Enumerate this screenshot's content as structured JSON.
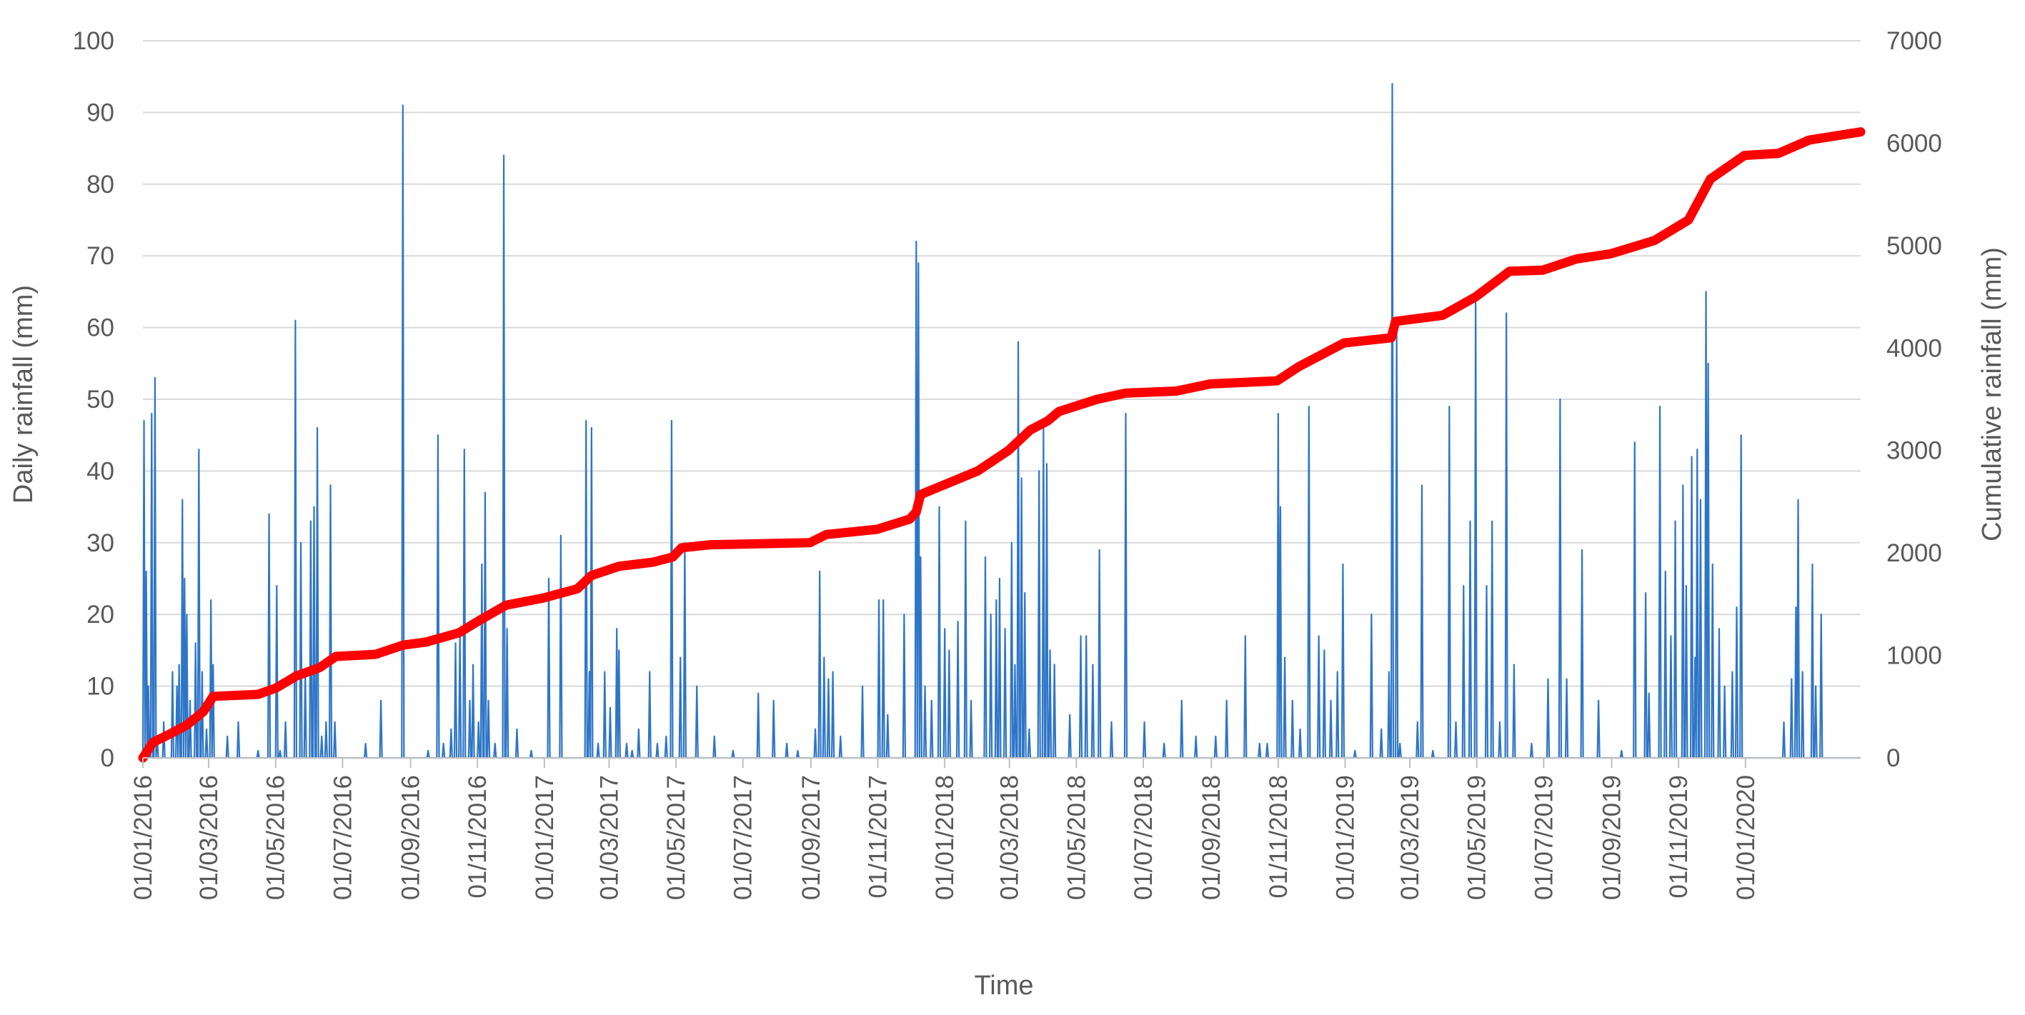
{
  "chart_data": {
    "type": "line",
    "xlabel": "Time",
    "ylabel_left": "Daily rainfall (mm)",
    "ylabel_right": "Cumulative rainfall (mm)",
    "x_range": [
      "2016-01-01",
      "2020-04-15"
    ],
    "ylim_left": [
      0,
      100
    ],
    "ylim_right": [
      0,
      7000
    ],
    "y_ticks_left": [
      "0",
      "10",
      "20",
      "30",
      "40",
      "50",
      "60",
      "70",
      "80",
      "90",
      "100"
    ],
    "y_ticks_right": [
      "0",
      "1000",
      "2000",
      "3000",
      "4000",
      "5000",
      "6000",
      "7000"
    ],
    "x_ticks": [
      "01/01/2016",
      "01/03/2016",
      "01/05/2016",
      "01/07/2016",
      "01/09/2016",
      "01/11/2016",
      "01/01/2017",
      "01/03/2017",
      "01/05/2017",
      "01/07/2017",
      "01/09/2017",
      "01/11/2017",
      "01/01/2018",
      "01/03/2018",
      "01/05/2018",
      "01/07/2018",
      "01/09/2018",
      "01/11/2018",
      "01/01/2019",
      "01/03/2019",
      "01/05/2019",
      "01/07/2019",
      "01/09/2019",
      "01/11/2019",
      "01/01/2020"
    ],
    "grid": "horizontal",
    "legend": "none",
    "series": [
      {
        "axis": "left",
        "color": "#2e75c7",
        "points": [
          [
            "2016-01-02",
            47
          ],
          [
            "2016-01-04",
            26
          ],
          [
            "2016-01-06",
            10
          ],
          [
            "2016-01-09",
            48
          ],
          [
            "2016-01-12",
            53
          ],
          [
            "2016-01-14",
            3
          ],
          [
            "2016-01-20",
            5
          ],
          [
            "2016-01-28",
            12
          ],
          [
            "2016-02-01",
            10
          ],
          [
            "2016-02-03",
            13
          ],
          [
            "2016-02-06",
            36
          ],
          [
            "2016-02-08",
            25
          ],
          [
            "2016-02-10",
            20
          ],
          [
            "2016-02-13",
            8
          ],
          [
            "2016-02-18",
            16
          ],
          [
            "2016-02-21",
            43
          ],
          [
            "2016-02-24",
            12
          ],
          [
            "2016-02-28",
            4
          ],
          [
            "2016-03-03",
            22
          ],
          [
            "2016-03-05",
            13
          ],
          [
            "2016-03-18",
            3
          ],
          [
            "2016-03-28",
            5
          ],
          [
            "2016-04-15",
            1
          ],
          [
            "2016-04-25",
            34
          ],
          [
            "2016-05-02",
            24
          ],
          [
            "2016-05-05",
            1
          ],
          [
            "2016-05-10",
            5
          ],
          [
            "2016-05-19",
            61
          ],
          [
            "2016-05-24",
            30
          ],
          [
            "2016-05-28",
            12
          ],
          [
            "2016-06-02",
            33
          ],
          [
            "2016-06-05",
            35
          ],
          [
            "2016-06-08",
            46
          ],
          [
            "2016-06-12",
            3
          ],
          [
            "2016-06-16",
            5
          ],
          [
            "2016-06-20",
            38
          ],
          [
            "2016-06-24",
            5
          ],
          [
            "2016-07-22",
            2
          ],
          [
            "2016-08-05",
            8
          ],
          [
            "2016-08-25",
            91
          ],
          [
            "2016-09-17",
            1
          ],
          [
            "2016-09-26",
            45
          ],
          [
            "2016-10-01",
            2
          ],
          [
            "2016-10-08",
            4
          ],
          [
            "2016-10-12",
            16
          ],
          [
            "2016-10-16",
            17
          ],
          [
            "2016-10-20",
            43
          ],
          [
            "2016-10-25",
            8
          ],
          [
            "2016-10-28",
            13
          ],
          [
            "2016-11-02",
            5
          ],
          [
            "2016-11-05",
            27
          ],
          [
            "2016-11-08",
            37
          ],
          [
            "2016-11-11",
            8
          ],
          [
            "2016-11-17",
            2
          ],
          [
            "2016-11-25",
            84
          ],
          [
            "2016-11-28",
            18
          ],
          [
            "2016-12-07",
            4
          ],
          [
            "2016-12-20",
            1
          ],
          [
            "2017-01-05",
            25
          ],
          [
            "2017-01-16",
            31
          ],
          [
            "2017-02-08",
            47
          ],
          [
            "2017-02-11",
            12
          ],
          [
            "2017-02-13",
            46
          ],
          [
            "2017-02-19",
            2
          ],
          [
            "2017-02-25",
            12
          ],
          [
            "2017-03-02",
            7
          ],
          [
            "2017-03-08",
            18
          ],
          [
            "2017-03-10",
            15
          ],
          [
            "2017-03-17",
            2
          ],
          [
            "2017-03-22",
            1
          ],
          [
            "2017-03-28",
            4
          ],
          [
            "2017-04-07",
            12
          ],
          [
            "2017-04-14",
            2
          ],
          [
            "2017-04-22",
            3
          ],
          [
            "2017-04-27",
            47
          ],
          [
            "2017-05-05",
            14
          ],
          [
            "2017-05-09",
            30
          ],
          [
            "2017-05-20",
            10
          ],
          [
            "2017-06-05",
            3
          ],
          [
            "2017-06-22",
            1
          ],
          [
            "2017-07-15",
            9
          ],
          [
            "2017-07-29",
            8
          ],
          [
            "2017-08-10",
            2
          ],
          [
            "2017-08-20",
            1
          ],
          [
            "2017-09-05",
            4
          ],
          [
            "2017-09-09",
            26
          ],
          [
            "2017-09-13",
            14
          ],
          [
            "2017-09-17",
            11
          ],
          [
            "2017-09-21",
            12
          ],
          [
            "2017-09-28",
            3
          ],
          [
            "2017-10-18",
            10
          ],
          [
            "2017-11-02",
            22
          ],
          [
            "2017-11-06",
            22
          ],
          [
            "2017-11-10",
            6
          ],
          [
            "2017-11-25",
            20
          ],
          [
            "2017-12-06",
            72
          ],
          [
            "2017-12-08",
            69
          ],
          [
            "2017-12-10",
            28
          ],
          [
            "2017-12-14",
            10
          ],
          [
            "2017-12-20",
            8
          ],
          [
            "2017-12-27",
            35
          ],
          [
            "2018-01-01",
            18
          ],
          [
            "2018-01-05",
            15
          ],
          [
            "2018-01-13",
            19
          ],
          [
            "2018-01-20",
            33
          ],
          [
            "2018-01-25",
            8
          ],
          [
            "2018-02-07",
            28
          ],
          [
            "2018-02-12",
            20
          ],
          [
            "2018-02-17",
            22
          ],
          [
            "2018-02-20",
            25
          ],
          [
            "2018-02-25",
            18
          ],
          [
            "2018-03-03",
            30
          ],
          [
            "2018-03-06",
            13
          ],
          [
            "2018-03-09",
            58
          ],
          [
            "2018-03-12",
            39
          ],
          [
            "2018-03-15",
            23
          ],
          [
            "2018-03-19",
            4
          ],
          [
            "2018-03-28",
            40
          ],
          [
            "2018-04-01",
            46
          ],
          [
            "2018-04-04",
            41
          ],
          [
            "2018-04-07",
            15
          ],
          [
            "2018-04-11",
            13
          ],
          [
            "2018-04-25",
            6
          ],
          [
            "2018-05-05",
            17
          ],
          [
            "2018-05-10",
            17
          ],
          [
            "2018-05-16",
            13
          ],
          [
            "2018-05-22",
            29
          ],
          [
            "2018-06-02",
            5
          ],
          [
            "2018-06-15",
            48
          ],
          [
            "2018-07-02",
            5
          ],
          [
            "2018-07-20",
            2
          ],
          [
            "2018-08-05",
            8
          ],
          [
            "2018-08-18",
            3
          ],
          [
            "2018-09-05",
            3
          ],
          [
            "2018-09-15",
            8
          ],
          [
            "2018-10-02",
            17
          ],
          [
            "2018-10-15",
            2
          ],
          [
            "2018-10-22",
            2
          ],
          [
            "2018-11-01",
            48
          ],
          [
            "2018-11-03",
            35
          ],
          [
            "2018-11-07",
            14
          ],
          [
            "2018-11-14",
            8
          ],
          [
            "2018-11-21",
            4
          ],
          [
            "2018-11-29",
            49
          ],
          [
            "2018-12-08",
            17
          ],
          [
            "2018-12-13",
            15
          ],
          [
            "2018-12-19",
            8
          ],
          [
            "2018-12-25",
            12
          ],
          [
            "2018-12-30",
            27
          ],
          [
            "2019-01-10",
            1
          ],
          [
            "2019-01-25",
            20
          ],
          [
            "2019-02-03",
            4
          ],
          [
            "2019-02-10",
            12
          ],
          [
            "2019-02-13",
            94
          ],
          [
            "2019-02-17",
            60
          ],
          [
            "2019-02-20",
            2
          ],
          [
            "2019-03-08",
            5
          ],
          [
            "2019-03-12",
            38
          ],
          [
            "2019-03-22",
            1
          ],
          [
            "2019-04-06",
            49
          ],
          [
            "2019-04-12",
            5
          ],
          [
            "2019-04-19",
            24
          ],
          [
            "2019-04-25",
            33
          ],
          [
            "2019-04-30",
            64
          ],
          [
            "2019-05-10",
            24
          ],
          [
            "2019-05-15",
            33
          ],
          [
            "2019-05-22",
            5
          ],
          [
            "2019-05-28",
            62
          ],
          [
            "2019-06-04",
            13
          ],
          [
            "2019-06-20",
            2
          ],
          [
            "2019-07-05",
            11
          ],
          [
            "2019-07-16",
            50
          ],
          [
            "2019-07-22",
            11
          ],
          [
            "2019-08-05",
            29
          ],
          [
            "2019-08-20",
            8
          ],
          [
            "2019-09-10",
            1
          ],
          [
            "2019-09-22",
            44
          ],
          [
            "2019-10-02",
            23
          ],
          [
            "2019-10-05",
            9
          ],
          [
            "2019-10-15",
            49
          ],
          [
            "2019-10-20",
            26
          ],
          [
            "2019-10-25",
            17
          ],
          [
            "2019-10-29",
            33
          ],
          [
            "2019-11-05",
            38
          ],
          [
            "2019-11-08",
            24
          ],
          [
            "2019-11-13",
            42
          ],
          [
            "2019-11-16",
            14
          ],
          [
            "2019-11-18",
            43
          ],
          [
            "2019-11-21",
            36
          ],
          [
            "2019-11-26",
            65
          ],
          [
            "2019-11-28",
            55
          ],
          [
            "2019-12-02",
            27
          ],
          [
            "2019-12-08",
            18
          ],
          [
            "2019-12-13",
            10
          ],
          [
            "2019-12-20",
            12
          ],
          [
            "2019-12-24",
            21
          ],
          [
            "2019-12-28",
            45
          ],
          [
            "2020-02-05",
            5
          ],
          [
            "2020-02-12",
            11
          ],
          [
            "2020-02-16",
            21
          ],
          [
            "2020-02-18",
            36
          ],
          [
            "2020-02-22",
            12
          ],
          [
            "2020-03-02",
            27
          ],
          [
            "2020-03-05",
            10
          ],
          [
            "2020-03-10",
            20
          ]
        ]
      },
      {
        "axis": "right",
        "color": "#ff0000",
        "points": [
          [
            "2016-01-01",
            0
          ],
          [
            "2016-01-10",
            150
          ],
          [
            "2016-01-25",
            230
          ],
          [
            "2016-02-10",
            320
          ],
          [
            "2016-02-25",
            450
          ],
          [
            "2016-03-05",
            600
          ],
          [
            "2016-04-15",
            620
          ],
          [
            "2016-05-01",
            680
          ],
          [
            "2016-05-20",
            800
          ],
          [
            "2016-06-10",
            880
          ],
          [
            "2016-06-25",
            990
          ],
          [
            "2016-07-31",
            1010
          ],
          [
            "2016-08-25",
            1100
          ],
          [
            "2016-09-15",
            1130
          ],
          [
            "2016-10-15",
            1220
          ],
          [
            "2016-11-01",
            1330
          ],
          [
            "2016-11-27",
            1490
          ],
          [
            "2016-12-31",
            1560
          ],
          [
            "2017-01-31",
            1650
          ],
          [
            "2017-02-13",
            1780
          ],
          [
            "2017-03-10",
            1870
          ],
          [
            "2017-04-10",
            1910
          ],
          [
            "2017-04-28",
            1960
          ],
          [
            "2017-05-06",
            2050
          ],
          [
            "2017-06-01",
            2080
          ],
          [
            "2017-08-31",
            2100
          ],
          [
            "2017-09-15",
            2180
          ],
          [
            "2017-10-31",
            2230
          ],
          [
            "2017-11-30",
            2330
          ],
          [
            "2017-12-06",
            2400
          ],
          [
            "2017-12-10",
            2570
          ],
          [
            "2018-01-31",
            2800
          ],
          [
            "2018-02-28",
            3000
          ],
          [
            "2018-03-20",
            3200
          ],
          [
            "2018-04-05",
            3290
          ],
          [
            "2018-04-15",
            3380
          ],
          [
            "2018-05-20",
            3500
          ],
          [
            "2018-06-15",
            3560
          ],
          [
            "2018-07-31",
            3580
          ],
          [
            "2018-08-31",
            3650
          ],
          [
            "2018-10-31",
            3680
          ],
          [
            "2018-11-20",
            3820
          ],
          [
            "2018-12-31",
            4050
          ],
          [
            "2019-02-12",
            4100
          ],
          [
            "2019-02-16",
            4260
          ],
          [
            "2019-03-31",
            4320
          ],
          [
            "2019-04-30",
            4500
          ],
          [
            "2019-05-31",
            4750
          ],
          [
            "2019-06-30",
            4760
          ],
          [
            "2019-07-31",
            4870
          ],
          [
            "2019-08-31",
            4920
          ],
          [
            "2019-10-10",
            5050
          ],
          [
            "2019-11-10",
            5250
          ],
          [
            "2019-11-30",
            5650
          ],
          [
            "2019-12-31",
            5880
          ],
          [
            "2020-01-31",
            5900
          ],
          [
            "2020-02-28",
            6030
          ],
          [
            "2020-04-15",
            6110
          ]
        ]
      }
    ]
  }
}
